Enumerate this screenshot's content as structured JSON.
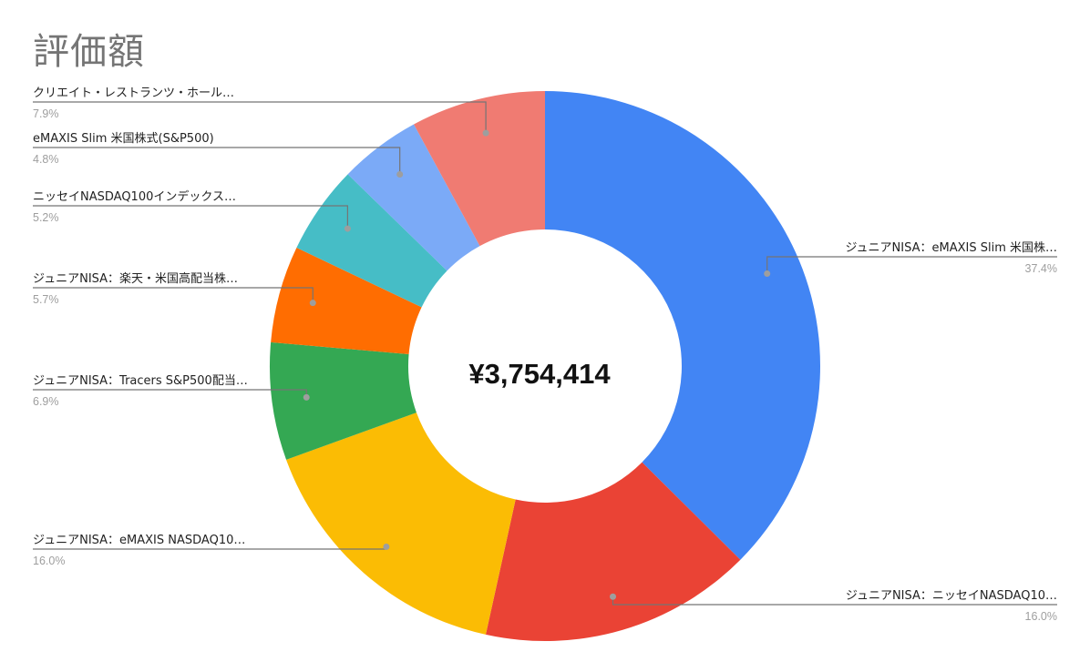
{
  "chart_data": {
    "type": "pie",
    "title": "評価額",
    "center_label": "¥3,754,414",
    "slices": [
      {
        "label": "ジュニアNISA：eMAXIS Slim 米国株…",
        "value": 37.4,
        "value_label": "37.4%",
        "color": "#4285f4"
      },
      {
        "label": "ジュニアNISA：ニッセイNASDAQ10…",
        "value": 16.0,
        "value_label": "16.0%",
        "color": "#ea4335"
      },
      {
        "label": "ジュニアNISA：eMAXIS NASDAQ10…",
        "value": 16.0,
        "value_label": "16.0%",
        "color": "#fbbc04"
      },
      {
        "label": "ジュニアNISA：Tracers S&P500配当…",
        "value": 6.9,
        "value_label": "6.9%",
        "color": "#34a853"
      },
      {
        "label": "ジュニアNISA：楽天・米国高配当株…",
        "value": 5.7,
        "value_label": "5.7%",
        "color": "#ff6d01"
      },
      {
        "label": "ニッセイNASDAQ100インデックス…",
        "value": 5.2,
        "value_label": "5.2%",
        "color": "#46bdc6"
      },
      {
        "label": "eMAXIS Slim 米国株式(S&P500)",
        "value": 4.8,
        "value_label": "4.8%",
        "color": "#7baaf7"
      },
      {
        "label": "クリエイト・レストランツ・ホール…",
        "value": 7.9,
        "value_label": "7.9%",
        "color": "#f07b72"
      }
    ],
    "legend": "none",
    "label_position": "outside-with-leader-lines"
  }
}
